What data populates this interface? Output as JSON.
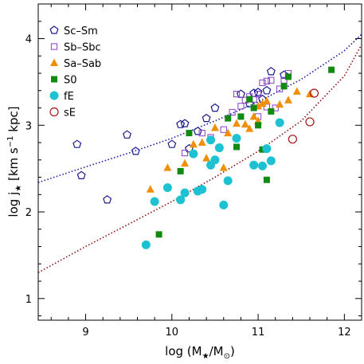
{
  "chart_data": {
    "type": "scatter",
    "title": "",
    "xlabel": "log (M★/M⊙)",
    "ylabel": "log j★ [km s⁻¹ kpc]",
    "xlim": [
      8.45,
      12.2
    ],
    "ylim": [
      0.75,
      4.4
    ],
    "x_ticks": [
      9,
      10,
      11,
      12
    ],
    "x_tick_labels": [
      "9",
      "10",
      "11",
      "12"
    ],
    "y_ticks": [
      1,
      2,
      3,
      4
    ],
    "y_tick_labels": [
      "1",
      "2",
      "3",
      "4"
    ],
    "grid": false,
    "legend_position": "top-left",
    "series": [
      {
        "name": "Sc–Sm",
        "marker": "pentagon-open",
        "color": "#1a1a8c",
        "points": [
          [
            8.9,
            2.78
          ],
          [
            8.95,
            2.42
          ],
          [
            9.25,
            2.14
          ],
          [
            9.48,
            2.89
          ],
          [
            9.58,
            2.7
          ],
          [
            10.0,
            2.78
          ],
          [
            10.1,
            3.01
          ],
          [
            10.15,
            3.02
          ],
          [
            10.2,
            2.73
          ],
          [
            10.3,
            2.93
          ],
          [
            10.4,
            3.08
          ],
          [
            10.5,
            3.2
          ],
          [
            10.8,
            3.36
          ],
          [
            10.9,
            3.25
          ],
          [
            10.95,
            3.37
          ],
          [
            11.0,
            3.38
          ],
          [
            11.05,
            3.3
          ],
          [
            11.1,
            3.4
          ],
          [
            11.15,
            3.62
          ],
          [
            11.3,
            3.58
          ]
        ]
      },
      {
        "name": "Sb–Sbc",
        "marker": "square-open",
        "color": "#8a3fc6",
        "points": [
          [
            10.15,
            2.68
          ],
          [
            10.35,
            2.91
          ],
          [
            10.45,
            2.86
          ],
          [
            10.6,
            2.95
          ],
          [
            10.7,
            3.15
          ],
          [
            10.75,
            3.36
          ],
          [
            10.8,
            3.22
          ],
          [
            10.85,
            3.29
          ],
          [
            10.9,
            3.33
          ],
          [
            10.95,
            3.3
          ],
          [
            11.0,
            3.36
          ],
          [
            11.05,
            3.49
          ],
          [
            11.1,
            3.51
          ],
          [
            11.15,
            3.52
          ],
          [
            11.0,
            3.1
          ],
          [
            11.1,
            3.21
          ],
          [
            11.2,
            3.2
          ],
          [
            11.25,
            3.42
          ],
          [
            11.3,
            3.52
          ],
          [
            11.35,
            3.6
          ]
        ]
      },
      {
        "name": "Sa–Sab",
        "marker": "triangle",
        "color": "#f0900a",
        "points": [
          [
            9.75,
            2.26
          ],
          [
            9.95,
            2.51
          ],
          [
            10.15,
            2.56
          ],
          [
            10.25,
            2.78
          ],
          [
            10.35,
            2.8
          ],
          [
            10.4,
            2.62
          ],
          [
            10.5,
            2.97
          ],
          [
            10.6,
            2.51
          ],
          [
            10.65,
            2.91
          ],
          [
            10.75,
            3.02
          ],
          [
            10.85,
            3.01
          ],
          [
            10.9,
            2.96
          ],
          [
            10.95,
            3.1
          ],
          [
            11.0,
            3.22
          ],
          [
            11.05,
            3.25
          ],
          [
            11.1,
            3.28
          ],
          [
            11.25,
            3.24
          ],
          [
            11.35,
            3.29
          ],
          [
            11.45,
            3.39
          ],
          [
            11.6,
            3.36
          ],
          [
            11.0,
            3.05
          ]
        ]
      },
      {
        "name": "S0",
        "marker": "square",
        "color": "#128a12",
        "points": [
          [
            9.85,
            1.74
          ],
          [
            10.1,
            2.47
          ],
          [
            10.2,
            2.91
          ],
          [
            10.65,
            3.08
          ],
          [
            10.75,
            2.75
          ],
          [
            10.8,
            3.1
          ],
          [
            10.9,
            3.3
          ],
          [
            10.95,
            3.2
          ],
          [
            11.0,
            3.0
          ],
          [
            11.05,
            2.72
          ],
          [
            11.1,
            2.37
          ],
          [
            11.15,
            3.16
          ],
          [
            11.25,
            3.03
          ],
          [
            11.3,
            3.45
          ],
          [
            11.35,
            3.56
          ],
          [
            11.85,
            3.64
          ]
        ]
      },
      {
        "name": "fE",
        "marker": "circle",
        "color": "#1ec1d1",
        "points": [
          [
            9.7,
            1.62
          ],
          [
            9.8,
            2.12
          ],
          [
            9.95,
            2.28
          ],
          [
            10.1,
            2.14
          ],
          [
            10.15,
            2.22
          ],
          [
            10.25,
            2.67
          ],
          [
            10.3,
            2.24
          ],
          [
            10.35,
            2.26
          ],
          [
            10.45,
            2.54
          ],
          [
            10.5,
            2.6
          ],
          [
            10.55,
            2.74
          ],
          [
            10.6,
            2.08
          ],
          [
            10.65,
            2.36
          ],
          [
            10.75,
            2.85
          ],
          [
            10.95,
            2.54
          ],
          [
            11.05,
            2.53
          ],
          [
            11.1,
            2.73
          ],
          [
            11.15,
            2.59
          ],
          [
            11.25,
            3.03
          ],
          [
            10.45,
            2.83
          ]
        ]
      },
      {
        "name": "sE",
        "marker": "circle-open",
        "color": "#a01616",
        "points": [
          [
            11.4,
            2.84
          ],
          [
            11.6,
            3.04
          ],
          [
            11.65,
            3.37
          ]
        ]
      }
    ],
    "fit_lines": [
      {
        "color": "#1a1aa0",
        "style": "dotted",
        "x": [
          8.45,
          9.0,
          9.5,
          10.0,
          10.5,
          11.0,
          11.5,
          12.0,
          12.2
        ],
        "y": [
          2.34,
          2.52,
          2.68,
          2.85,
          3.05,
          3.27,
          3.53,
          3.86,
          4.05
        ]
      },
      {
        "color": "#8b1010",
        "style": "dotted",
        "x": [
          8.45,
          9.0,
          9.5,
          10.0,
          10.5,
          11.0,
          11.5,
          12.0,
          12.2
        ],
        "y": [
          1.3,
          1.6,
          1.86,
          2.12,
          2.4,
          2.7,
          3.05,
          3.57,
          3.93
        ]
      }
    ]
  }
}
